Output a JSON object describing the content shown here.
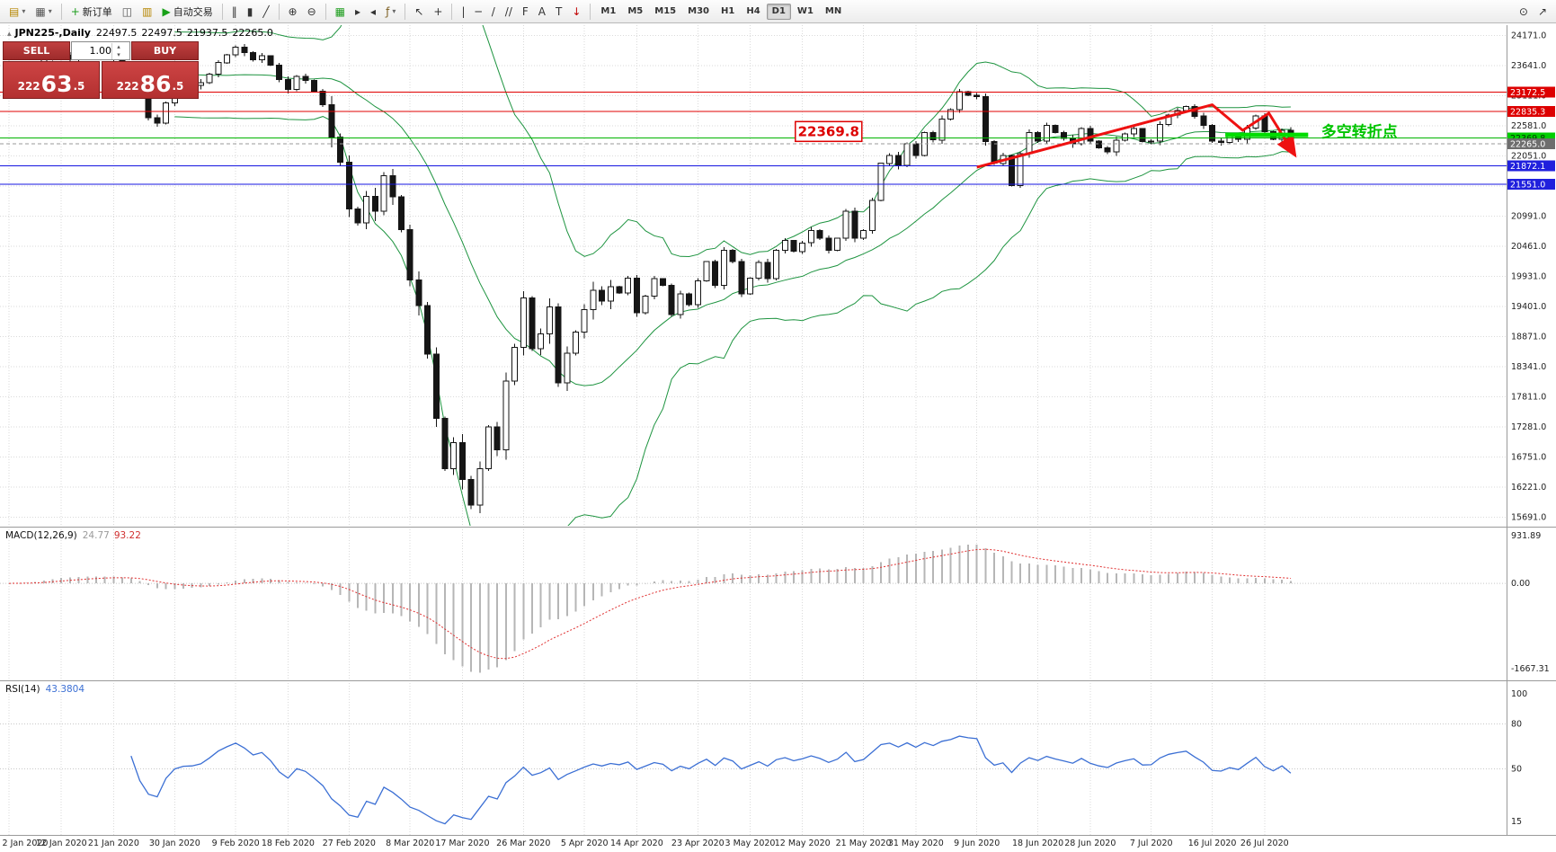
{
  "glyphs": {
    "up": "▴",
    "down": "▾",
    "collapse": "▴",
    "dropdown": "▾"
  },
  "toolbar": {
    "groups": [
      {
        "items": [
          {
            "name": "new-chart",
            "glyph": "▤",
            "color": "#b58500",
            "dd": true
          },
          {
            "name": "profiles",
            "glyph": "▦",
            "color": "#555",
            "dd": true
          }
        ]
      },
      {
        "items": [
          {
            "name": "new-order",
            "glyph": "+",
            "color": "#1d9d1d",
            "label": "新订单"
          },
          {
            "name": "chart-window",
            "glyph": "◫",
            "color": "#555"
          },
          {
            "name": "market-watch",
            "glyph": "▥",
            "color": "#b58500"
          },
          {
            "name": "auto-trading",
            "glyph": "▶",
            "color": "#18a018",
            "label": "自动交易"
          }
        ]
      },
      {
        "items": [
          {
            "name": "bar-chart",
            "glyph": "‖",
            "color": "#333"
          },
          {
            "name": "candlestick-chart",
            "glyph": "▮",
            "color": "#333"
          },
          {
            "name": "line-chart",
            "glyph": "╱",
            "color": "#333"
          }
        ]
      },
      {
        "items": [
          {
            "name": "zoom-in",
            "glyph": "⊕",
            "color": "#333"
          },
          {
            "name": "zoom-out",
            "glyph": "⊖",
            "color": "#333"
          }
        ]
      },
      {
        "items": [
          {
            "name": "tile-windows",
            "glyph": "▦",
            "color": "#1d9d1d"
          },
          {
            "name": "auto-scroll",
            "glyph": "▸",
            "color": "#333"
          },
          {
            "name": "chart-shift",
            "glyph": "◂",
            "color": "#333"
          },
          {
            "name": "indicators",
            "glyph": "ƒ",
            "color": "#7a5c1e",
            "dd": true
          }
        ]
      },
      {
        "items": [
          {
            "name": "cursor",
            "glyph": "↖",
            "color": "#333"
          },
          {
            "name": "crosshair",
            "glyph": "+",
            "color": "#333"
          }
        ]
      },
      {
        "items": [
          {
            "name": "vertical-line",
            "glyph": "|",
            "color": "#333"
          },
          {
            "name": "horizontal-line",
            "glyph": "─",
            "color": "#333"
          },
          {
            "name": "trendline",
            "glyph": "/",
            "color": "#333"
          },
          {
            "name": "equidistant-channel",
            "glyph": "//",
            "color": "#333"
          },
          {
            "name": "fibonacci",
            "glyph": "F",
            "color": "#333"
          },
          {
            "name": "text",
            "glyph": "A",
            "color": "#333"
          },
          {
            "name": "text-label",
            "glyph": "T",
            "color": "#333"
          },
          {
            "name": "arrows",
            "glyph": "↓",
            "color": "#c00000"
          }
        ]
      }
    ],
    "timeframes": [
      "M1",
      "M5",
      "M15",
      "M30",
      "H1",
      "H4",
      "D1",
      "W1",
      "MN"
    ],
    "active_timeframe": "D1",
    "right_items": [
      {
        "name": "search",
        "glyph": "⊙",
        "color": "#333"
      },
      {
        "name": "full-screen",
        "glyph": "↗",
        "color": "#333"
      }
    ]
  },
  "chart": {
    "symbol_title": "JPN225-,Daily",
    "ohlc": {
      "open": "22497.5",
      "high": "22497.5",
      "low": "21937.5",
      "close": "22265.0"
    },
    "trade_panel": {
      "sell_label": "SELL",
      "buy_label": "BUY",
      "volume": "1.00",
      "sell_price": "22263.5",
      "buy_price": "22286.5"
    }
  },
  "macd": {
    "name": "MACD(12,26,9)",
    "value_main": "24.77",
    "value_signal": "93.22",
    "axis": [
      "931.89",
      "0.00",
      "-1667.31"
    ]
  },
  "rsi": {
    "name": "RSI(14)",
    "value": "43.3804",
    "axis": [
      "100",
      "80",
      "50",
      "15"
    ],
    "levels": [
      80,
      50
    ]
  },
  "chart_data": {
    "type": "candlestick",
    "symbol": "JPN225-",
    "period": "Daily",
    "first_open": 23205,
    "closes": [
      23320,
      23380,
      23420,
      23560,
      23740,
      23850,
      23820,
      23750,
      23810,
      23860,
      23790,
      23830,
      23750,
      23640,
      23520,
      23100,
      22720,
      22630,
      22980,
      23210,
      23280,
      23290,
      23340,
      23490,
      23690,
      23830,
      23960,
      23870,
      23740,
      23810,
      23650,
      23390,
      23220,
      23450,
      23380,
      23190,
      22950,
      22380,
      21940,
      21120,
      20870,
      21340,
      21080,
      21700,
      21330,
      20750,
      19870,
      19420,
      18560,
      17430,
      16550,
      17010,
      16360,
      15910,
      16550,
      17280,
      16880,
      18090,
      18680,
      19550,
      18660,
      18920,
      19390,
      18060,
      18580,
      18950,
      19350,
      19690,
      19500,
      19750,
      19640,
      19900,
      19290,
      19580,
      19890,
      19770,
      19260,
      19620,
      19430,
      19850,
      20190,
      19770,
      20390,
      20190,
      19620,
      19900,
      20180,
      19890,
      20390,
      20560,
      20370,
      20520,
      20740,
      20600,
      20390,
      20600,
      21080,
      20600,
      20740,
      21270,
      21920,
      22060,
      21880,
      22260,
      22060,
      22460,
      22330,
      22700,
      22860,
      23180,
      23120,
      23090,
      22300,
      21920,
      22060,
      21530,
      22090,
      22460,
      22310,
      22590,
      22460,
      22360,
      22260,
      22530,
      22310,
      22190,
      22120,
      22330,
      22440,
      22530,
      22300,
      22310,
      22600,
      22770,
      22850,
      22920,
      22750,
      22590,
      22310,
      22290,
      22400,
      22340,
      22540,
      22750,
      22480,
      22340,
      22500,
      22265
    ],
    "y_axis": {
      "ticks": [
        24171,
        23641,
        23111,
        22581,
        22051,
        21521,
        20991,
        20461,
        19931,
        19401,
        18871,
        18341,
        17811,
        17281,
        16751,
        16221,
        15691
      ]
    },
    "x_axis": {
      "ticks": [
        {
          "i": 0,
          "label": "2 Jan 2020"
        },
        {
          "i": 6,
          "label": "12 Jan 2020"
        },
        {
          "i": 12,
          "label": "21 Jan 2020"
        },
        {
          "i": 19,
          "label": "30 Jan 2020"
        },
        {
          "i": 26,
          "label": "9 Feb 2020"
        },
        {
          "i": 32,
          "label": "18 Feb 2020"
        },
        {
          "i": 39,
          "label": "27 Feb 2020"
        },
        {
          "i": 46,
          "label": "8 Mar 2020"
        },
        {
          "i": 52,
          "label": "17 Mar 2020"
        },
        {
          "i": 59,
          "label": "26 Mar 2020"
        },
        {
          "i": 66,
          "label": "5 Apr 2020"
        },
        {
          "i": 72,
          "label": "14 Apr 2020"
        },
        {
          "i": 79,
          "label": "23 Apr 2020"
        },
        {
          "i": 85,
          "label": "3 May 2020"
        },
        {
          "i": 91,
          "label": "12 May 2020"
        },
        {
          "i": 98,
          "label": "21 May 2020"
        },
        {
          "i": 104,
          "label": "31 May 2020"
        },
        {
          "i": 111,
          "label": "9 Jun 2020"
        },
        {
          "i": 118,
          "label": "18 Jun 2020"
        },
        {
          "i": 124,
          "label": "28 Jun 2020"
        },
        {
          "i": 131,
          "label": "7 Jul 2020"
        },
        {
          "i": 138,
          "label": "16 Jul 2020"
        },
        {
          "i": 144,
          "label": "26 Jul 2020"
        }
      ]
    },
    "lines": [
      {
        "value": 23172.5,
        "label": "23172.5",
        "color": "#e00000",
        "badge_bg": "#dd0000",
        "badge_fg": "#ffffff"
      },
      {
        "value": 22835.3,
        "label": "22835.3",
        "color": "#e00000",
        "badge_bg": "#dd0000",
        "badge_fg": "#ffffff"
      },
      {
        "value": 22369.8,
        "label": "22369.8",
        "color": "#00b400",
        "badge_bg": "#00ce00",
        "badge_fg": "#003300"
      },
      {
        "value": 22265.0,
        "label": "22265.0",
        "color": "#999999",
        "dashed": true,
        "badge_bg": "#6e6e6e",
        "badge_fg": "#ffffff"
      },
      {
        "value": 21872.1,
        "label": "21872.1",
        "color": "#1515e0",
        "badge_bg": "#2020dd",
        "badge_fg": "#ffffff"
      },
      {
        "value": 21551.0,
        "label": "21551.0",
        "color": "#1515e0",
        "badge_bg": "#2020dd",
        "badge_fg": "#ffffff"
      }
    ],
    "annotations": {
      "trend_arrow": {
        "color": "#ee1111",
        "points": [
          [
            111,
            21850
          ],
          [
            138,
            22950
          ],
          [
            141.5,
            22500
          ],
          [
            144.5,
            22800
          ],
          [
            147.5,
            22060
          ]
        ]
      },
      "support_segment": {
        "color": "#00dd00",
        "price": 22420,
        "from_index": 139.5,
        "to_index": 149,
        "width": 5
      },
      "price_flag": {
        "text": "22369.8",
        "index": 94,
        "price": 22480,
        "color": "#dd0000"
      },
      "note": {
        "text": "多空转折点",
        "index": 150.5,
        "price": 22480,
        "color": "#00c400"
      }
    },
    "colors": {
      "bollinger": "#1e9440",
      "rsi": "#3b6fd4",
      "candle": "#151515",
      "macd_hist": "#b6b6b6",
      "macd_signal": "#e03030",
      "grid": "#dadada"
    }
  }
}
